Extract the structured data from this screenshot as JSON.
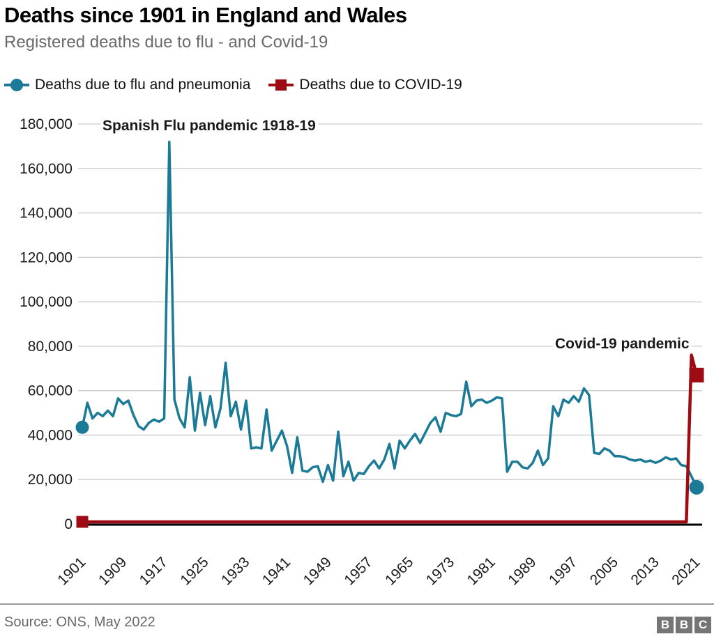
{
  "header": {
    "title": "Deaths since 1901 in England and Wales",
    "subtitle": "Registered deaths due to flu - and Covid-19"
  },
  "footer": {
    "source": "Source: ONS, May 2022",
    "logo_letters": [
      "B",
      "B",
      "C"
    ]
  },
  "chart_data": {
    "type": "line",
    "title": "Deaths since 1901 in England and Wales",
    "subtitle": "Registered deaths due to flu - and Covid-19",
    "x_years": {
      "start": 1901,
      "end": 2021,
      "step": 1
    },
    "ylim": [
      0,
      180000
    ],
    "grid": "horizontal",
    "legend_position": "top",
    "y_ticks": [
      {
        "value": 0,
        "label": "0"
      },
      {
        "value": 20000,
        "label": "20,000"
      },
      {
        "value": 40000,
        "label": "40,000"
      },
      {
        "value": 60000,
        "label": "60,000"
      },
      {
        "value": 80000,
        "label": "80,000"
      },
      {
        "value": 100000,
        "label": "100,000"
      },
      {
        "value": 120000,
        "label": "120,000"
      },
      {
        "value": 140000,
        "label": "140,000"
      },
      {
        "value": 160000,
        "label": "160,000"
      },
      {
        "value": 180000,
        "label": "180,000"
      }
    ],
    "x_ticks": [
      1901,
      1909,
      1917,
      1925,
      1933,
      1941,
      1949,
      1957,
      1965,
      1973,
      1981,
      1989,
      1997,
      2005,
      2013,
      2021
    ],
    "annotations": [
      {
        "text": "Spanish Flu pandemic 1918-19",
        "x": 1918,
        "y": 178000
      },
      {
        "text": "Covid-19 pandemic",
        "x": 2021,
        "y": 82000
      }
    ],
    "series": [
      {
        "name": "Deaths due to flu and pneumonia",
        "color": "#1b7a96",
        "marker": "circle",
        "marker_at": "endpoints",
        "values": [
          43500,
          54500,
          47500,
          50000,
          48500,
          51000,
          48500,
          56500,
          54000,
          55500,
          49000,
          44000,
          42500,
          45500,
          47000,
          46000,
          47500,
          172000,
          56000,
          47500,
          43500,
          66000,
          42000,
          59000,
          44500,
          57500,
          43500,
          52000,
          72500,
          48500,
          55000,
          42500,
          55500,
          34000,
          34500,
          34000,
          51500,
          33000,
          37500,
          42000,
          35000,
          23000,
          39000,
          24000,
          23500,
          25500,
          26000,
          19000,
          26500,
          19500,
          41500,
          21500,
          28000,
          19500,
          23000,
          22500,
          26000,
          28500,
          25000,
          29000,
          36000,
          25000,
          37500,
          34000,
          37500,
          40500,
          36500,
          41000,
          45500,
          48000,
          41500,
          50000,
          49000,
          48500,
          49500,
          64000,
          53000,
          55500,
          56000,
          54500,
          55500,
          57000,
          56500,
          23500,
          28000,
          28000,
          25500,
          25000,
          27500,
          33000,
          26500,
          29500,
          53000,
          48500,
          56000,
          54500,
          57500,
          55000,
          61000,
          58000,
          32000,
          31500,
          34000,
          33000,
          30500,
          30500,
          30000,
          29000,
          28500,
          29000,
          28000,
          28500,
          27500,
          28500,
          30000,
          29000,
          29500,
          26500,
          26000,
          21500,
          16500
        ]
      },
      {
        "name": "Deaths due to COVID-19",
        "color": "#9e0b12",
        "marker": "square",
        "marker_at": "endpoints",
        "values": [
          0,
          0,
          0,
          0,
          0,
          0,
          0,
          0,
          0,
          0,
          0,
          0,
          0,
          0,
          0,
          0,
          0,
          0,
          0,
          0,
          0,
          0,
          0,
          0,
          0,
          0,
          0,
          0,
          0,
          0,
          0,
          0,
          0,
          0,
          0,
          0,
          0,
          0,
          0,
          0,
          0,
          0,
          0,
          0,
          0,
          0,
          0,
          0,
          0,
          0,
          0,
          0,
          0,
          0,
          0,
          0,
          0,
          0,
          0,
          0,
          0,
          0,
          0,
          0,
          0,
          0,
          0,
          0,
          0,
          0,
          0,
          0,
          0,
          0,
          0,
          0,
          0,
          0,
          0,
          0,
          0,
          0,
          0,
          0,
          0,
          0,
          0,
          0,
          0,
          0,
          0,
          0,
          0,
          0,
          0,
          0,
          0,
          0,
          0,
          0,
          0,
          0,
          0,
          0,
          0,
          0,
          0,
          0,
          0,
          0,
          0,
          0,
          0,
          0,
          0,
          0,
          0,
          0,
          0,
          76000,
          67000
        ]
      }
    ]
  }
}
